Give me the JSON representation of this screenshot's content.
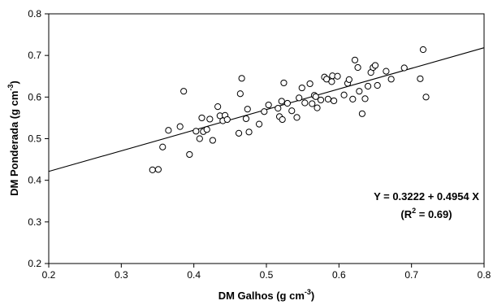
{
  "chart_data": {
    "type": "scatter",
    "title": "",
    "xlabel": {
      "main": "DM Galhos (g cm",
      "sup": "-3",
      "end": ")"
    },
    "ylabel": {
      "main": "DM Ponderada (g cm",
      "sup": "-3",
      "end": ")"
    },
    "xlim": [
      0.2,
      0.8
    ],
    "ylim": [
      0.2,
      0.8
    ],
    "xticks": [
      0.2,
      0.3,
      0.4,
      0.5,
      0.6,
      0.7,
      0.8
    ],
    "yticks": [
      0.2,
      0.3,
      0.4,
      0.5,
      0.6,
      0.7,
      0.8
    ],
    "xtick_labels": [
      "0.2",
      "0.3",
      "0.4",
      "0.5",
      "0.6",
      "0.7",
      "0.8"
    ],
    "ytick_labels": [
      "0.2",
      "0.3",
      "0.4",
      "0.5",
      "0.6",
      "0.7",
      "0.8"
    ],
    "grid": false,
    "regression": {
      "intercept": 0.3222,
      "slope": 0.4954,
      "equation_text": "Y = 0.3222 + 0.4954 X",
      "r2_prefix": "(R",
      "r2_sup": "2",
      "r2_suffix": " = 0.69)"
    },
    "points": [
      [
        0.343,
        0.425
      ],
      [
        0.351,
        0.426
      ],
      [
        0.357,
        0.48
      ],
      [
        0.365,
        0.52
      ],
      [
        0.381,
        0.529
      ],
      [
        0.386,
        0.614
      ],
      [
        0.394,
        0.462
      ],
      [
        0.403,
        0.518
      ],
      [
        0.408,
        0.5
      ],
      [
        0.411,
        0.55
      ],
      [
        0.413,
        0.517
      ],
      [
        0.418,
        0.522
      ],
      [
        0.422,
        0.547
      ],
      [
        0.426,
        0.496
      ],
      [
        0.433,
        0.577
      ],
      [
        0.436,
        0.555
      ],
      [
        0.44,
        0.543
      ],
      [
        0.443,
        0.556
      ],
      [
        0.446,
        0.546
      ],
      [
        0.462,
        0.513
      ],
      [
        0.464,
        0.608
      ],
      [
        0.466,
        0.645
      ],
      [
        0.472,
        0.548
      ],
      [
        0.474,
        0.571
      ],
      [
        0.476,
        0.516
      ],
      [
        0.49,
        0.535
      ],
      [
        0.497,
        0.565
      ],
      [
        0.503,
        0.581
      ],
      [
        0.516,
        0.573
      ],
      [
        0.518,
        0.553
      ],
      [
        0.521,
        0.59
      ],
      [
        0.522,
        0.546
      ],
      [
        0.524,
        0.634
      ],
      [
        0.529,
        0.585
      ],
      [
        0.535,
        0.567
      ],
      [
        0.542,
        0.551
      ],
      [
        0.545,
        0.598
      ],
      [
        0.549,
        0.622
      ],
      [
        0.553,
        0.586
      ],
      [
        0.56,
        0.632
      ],
      [
        0.563,
        0.584
      ],
      [
        0.566,
        0.604
      ],
      [
        0.568,
        0.601
      ],
      [
        0.57,
        0.574
      ],
      [
        0.575,
        0.593
      ],
      [
        0.58,
        0.648
      ],
      [
        0.583,
        0.643
      ],
      [
        0.585,
        0.595
      ],
      [
        0.59,
        0.637
      ],
      [
        0.591,
        0.651
      ],
      [
        0.593,
        0.591
      ],
      [
        0.598,
        0.65
      ],
      [
        0.607,
        0.605
      ],
      [
        0.612,
        0.633
      ],
      [
        0.614,
        0.642
      ],
      [
        0.619,
        0.595
      ],
      [
        0.622,
        0.689
      ],
      [
        0.626,
        0.671
      ],
      [
        0.628,
        0.614
      ],
      [
        0.632,
        0.56
      ],
      [
        0.636,
        0.596
      ],
      [
        0.64,
        0.626
      ],
      [
        0.644,
        0.659
      ],
      [
        0.647,
        0.671
      ],
      [
        0.65,
        0.676
      ],
      [
        0.653,
        0.628
      ],
      [
        0.665,
        0.662
      ],
      [
        0.672,
        0.643
      ],
      [
        0.69,
        0.67
      ],
      [
        0.712,
        0.644
      ],
      [
        0.716,
        0.714
      ],
      [
        0.72,
        0.6
      ]
    ]
  }
}
